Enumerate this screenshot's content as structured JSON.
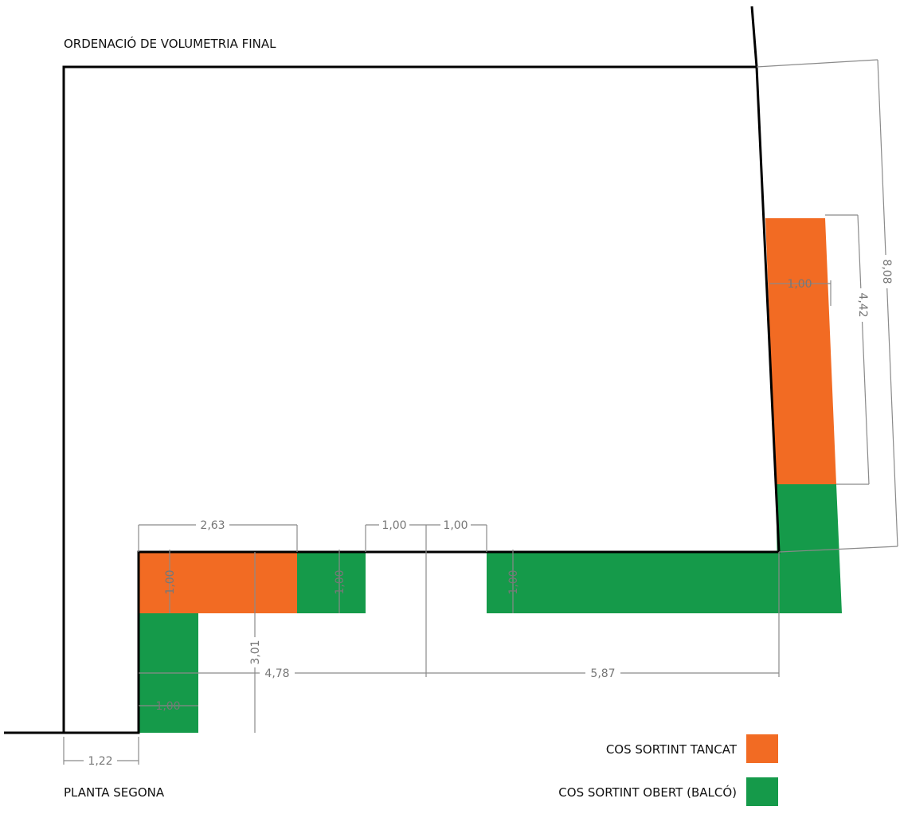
{
  "title": "ORDENACIÓ DE VOLUMETRIA FINAL",
  "floor_label": "PLANTA SEGONA",
  "colors": {
    "closed": "#f26b23",
    "open": "#159a4a",
    "dimension": "#8a8a8a",
    "wall": "#000000"
  },
  "legend": [
    {
      "label": "COS SORTINT TANCAT",
      "color_key": "closed"
    },
    {
      "label": "COS SORTINT OBERT (BALCÓ)",
      "color_key": "open"
    }
  ],
  "dimensions": {
    "total_right": "8,08",
    "closed_right_length": "4,42",
    "closed_right_depth": "1,00",
    "front_closed_length": "2,63",
    "gap_1": "1,00",
    "gap_2": "1,00",
    "front_closed_depth": "1,00",
    "front_open_depth_1": "1,00",
    "front_open_depth_2": "1,00",
    "left_open_depth": "1,00",
    "setback_height": "3,01",
    "front_left_length": "4,78",
    "front_right_length": "5,87",
    "left_setback": "1,22"
  }
}
